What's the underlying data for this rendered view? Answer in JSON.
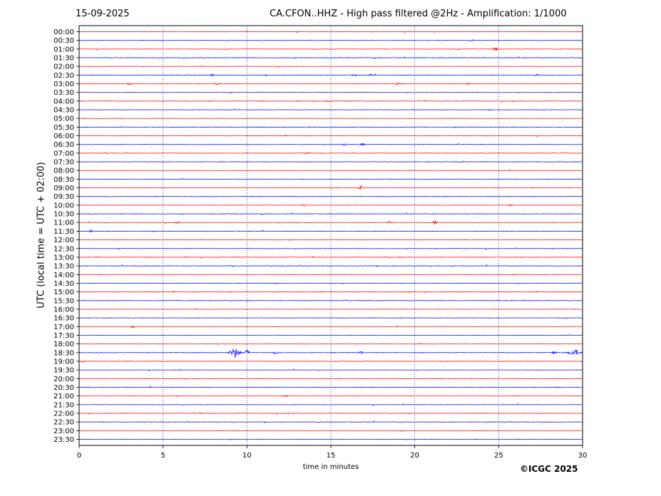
{
  "header": {
    "date": "15-09-2025",
    "title": "CA.CFON..HHZ - High pass filtered @2Hz - Amplification: 1/1000"
  },
  "footer": {
    "copyright": "©ICGC 2025"
  },
  "chart_data": {
    "type": "line",
    "title": "CA.CFON..HHZ - High pass filtered @2Hz - Amplification: 1/1000",
    "xlabel": "time in minutes",
    "ylabel": "UTC (local time = UTC + 02:00)",
    "xlim": [
      0,
      30
    ],
    "x_ticks": [
      0,
      5,
      10,
      15,
      20,
      25,
      30
    ],
    "y_ticks": [
      "00:00",
      "00:30",
      "01:00",
      "01:30",
      "02:00",
      "02:30",
      "03:00",
      "03:30",
      "04:00",
      "04:30",
      "05:00",
      "05:30",
      "06:00",
      "06:30",
      "07:00",
      "07:30",
      "08:00",
      "08:30",
      "09:00",
      "09:30",
      "10:00",
      "10:30",
      "11:00",
      "11:30",
      "12:00",
      "12:30",
      "13:00",
      "13:30",
      "14:00",
      "14:30",
      "15:00",
      "15:30",
      "16:00",
      "16:30",
      "17:00",
      "17:30",
      "18:00",
      "18:30",
      "19:00",
      "19:30",
      "20:00",
      "20:30",
      "21:00",
      "21:30",
      "22:00",
      "22:30",
      "23:00",
      "23:30"
    ],
    "grid": "vertical dotted at x ticks",
    "trace_colors": [
      "#ff0000",
      "#0000ff"
    ],
    "events": [
      {
        "row": "00:30",
        "minute": 23.4,
        "amplitude": 1.5
      },
      {
        "row": "01:00",
        "minute": 24.8,
        "amplitude": 3.5
      },
      {
        "row": "01:00",
        "minute": 22.5,
        "amplitude": 1.2
      },
      {
        "row": "02:30",
        "minute": 7.9,
        "amplitude": 1.5
      },
      {
        "row": "02:30",
        "minute": 16.4,
        "amplitude": 1.5
      },
      {
        "row": "02:30",
        "minute": 17.4,
        "amplitude": 1.2
      },
      {
        "row": "02:30",
        "minute": 27.3,
        "amplitude": 1.2
      },
      {
        "row": "03:00",
        "minute": 3.0,
        "amplitude": 2.0
      },
      {
        "row": "03:00",
        "minute": 8.2,
        "amplitude": 2.0
      },
      {
        "row": "03:00",
        "minute": 19.0,
        "amplitude": 2.5
      },
      {
        "row": "03:00",
        "minute": 23.2,
        "amplitude": 1.8
      },
      {
        "row": "04:00",
        "minute": 14.8,
        "amplitude": 1.2
      },
      {
        "row": "06:30",
        "minute": 15.8,
        "amplitude": 1.2
      },
      {
        "row": "06:30",
        "minute": 16.9,
        "amplitude": 1.5
      },
      {
        "row": "07:00",
        "minute": 13.5,
        "amplitude": 1.2
      },
      {
        "row": "07:30",
        "minute": 22.8,
        "amplitude": 1.5
      },
      {
        "row": "09:00",
        "minute": 16.8,
        "amplitude": 2.8
      },
      {
        "row": "10:00",
        "minute": 13.4,
        "amplitude": 2.0
      },
      {
        "row": "10:00",
        "minute": 25.7,
        "amplitude": 1.2
      },
      {
        "row": "11:00",
        "minute": 5.9,
        "amplitude": 1.5
      },
      {
        "row": "11:00",
        "minute": 18.5,
        "amplitude": 1.5
      },
      {
        "row": "11:00",
        "minute": 21.2,
        "amplitude": 3.0
      },
      {
        "row": "11:30",
        "minute": 0.7,
        "amplitude": 1.5
      },
      {
        "row": "13:30",
        "minute": 9.1,
        "amplitude": 1.2
      },
      {
        "row": "14:30",
        "minute": 11.8,
        "amplitude": 1.2
      },
      {
        "row": "17:00",
        "minute": 3.2,
        "amplitude": 1.5
      },
      {
        "row": "18:30",
        "minute": 9.3,
        "amplitude": 7.0
      },
      {
        "row": "18:30",
        "minute": 10.0,
        "amplitude": 3.5
      },
      {
        "row": "18:30",
        "minute": 11.7,
        "amplitude": 1.8
      },
      {
        "row": "18:30",
        "minute": 16.8,
        "amplitude": 2.2
      },
      {
        "row": "18:30",
        "minute": 28.3,
        "amplitude": 2.5
      },
      {
        "row": "18:30",
        "minute": 29.5,
        "amplitude": 4.5
      },
      {
        "row": "19:00",
        "minute": 0.3,
        "amplitude": 1.5
      },
      {
        "row": "21:00",
        "minute": 12.3,
        "amplitude": 1.2
      }
    ]
  }
}
